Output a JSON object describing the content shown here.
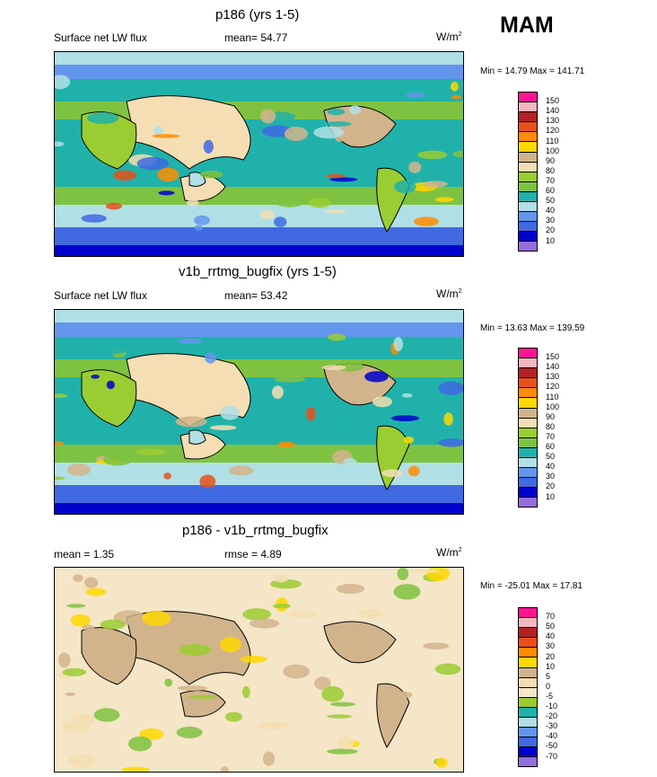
{
  "season": "MAM",
  "panels": [
    {
      "title": "p186 (yrs 1-5)",
      "left_label": "Surface net LW flux",
      "center_label": "mean=  54.77",
      "units_base": "W/m",
      "units_exp": "2",
      "minmax": "Min =  14.79 Max = 141.71",
      "colorbar": {
        "labels": [
          "150",
          "140",
          "130",
          "120",
          "110",
          "100",
          "90",
          "80",
          "70",
          "60",
          "50",
          "40",
          "30",
          "20",
          "10"
        ],
        "colors": [
          "#ff1493",
          "#f4b6c2",
          "#b22222",
          "#e8501a",
          "#ff8c00",
          "#ffd700",
          "#d2b48c",
          "#f5deb3",
          "#9acd32",
          "#7fc241",
          "#20b2aa",
          "#b0e0e6",
          "#6495ed",
          "#4169e1",
          "#0000cd",
          "#9370db"
        ]
      }
    },
    {
      "title": "v1b_rrtmg_bugfix (yrs 1-5)",
      "left_label": "Surface net LW flux",
      "center_label": "mean=  53.42",
      "units_base": "W/m",
      "units_exp": "2",
      "minmax": "Min =  13.63 Max = 139.59",
      "colorbar": {
        "labels": [
          "150",
          "140",
          "130",
          "120",
          "110",
          "100",
          "90",
          "80",
          "70",
          "60",
          "50",
          "40",
          "30",
          "20",
          "10"
        ],
        "colors": [
          "#ff1493",
          "#f4b6c2",
          "#b22222",
          "#e8501a",
          "#ff8c00",
          "#ffd700",
          "#d2b48c",
          "#f5deb3",
          "#9acd32",
          "#7fc241",
          "#20b2aa",
          "#b0e0e6",
          "#6495ed",
          "#4169e1",
          "#0000cd",
          "#9370db"
        ]
      }
    },
    {
      "title": "p186 - v1b_rrtmg_bugfix",
      "left_label": "mean =   1.35",
      "center_label": "rmse =   4.89",
      "units_base": "W/m",
      "units_exp": "2",
      "minmax": "Min = -25.01 Max =  17.81",
      "colorbar": {
        "labels": [
          "70",
          "50",
          "40",
          "30",
          "20",
          "10",
          "5",
          "0",
          "-5",
          "-10",
          "-20",
          "-30",
          "-40",
          "-50",
          "-70"
        ],
        "colors": [
          "#ff1493",
          "#f4b6c2",
          "#b22222",
          "#e8501a",
          "#ff8c00",
          "#ffd700",
          "#d2b48c",
          "#f5deb3",
          "#f5e6c8",
          "#9acd32",
          "#20b2aa",
          "#b0e0e6",
          "#6495ed",
          "#4169e1",
          "#0000cd",
          "#9370db"
        ]
      }
    }
  ],
  "map_palette": {
    "abs": [
      "#0000cd",
      "#4169e1",
      "#6495ed",
      "#b0e0e6",
      "#20b2aa",
      "#7fc241",
      "#9acd32",
      "#f5deb3",
      "#d2b48c",
      "#ffd700",
      "#ff8c00",
      "#e8501a"
    ],
    "diff": [
      "#f5e6c8",
      "#f5deb3",
      "#d2b48c",
      "#9acd32",
      "#7fc241",
      "#20b2aa",
      "#ffd700",
      "#6495ed"
    ]
  }
}
